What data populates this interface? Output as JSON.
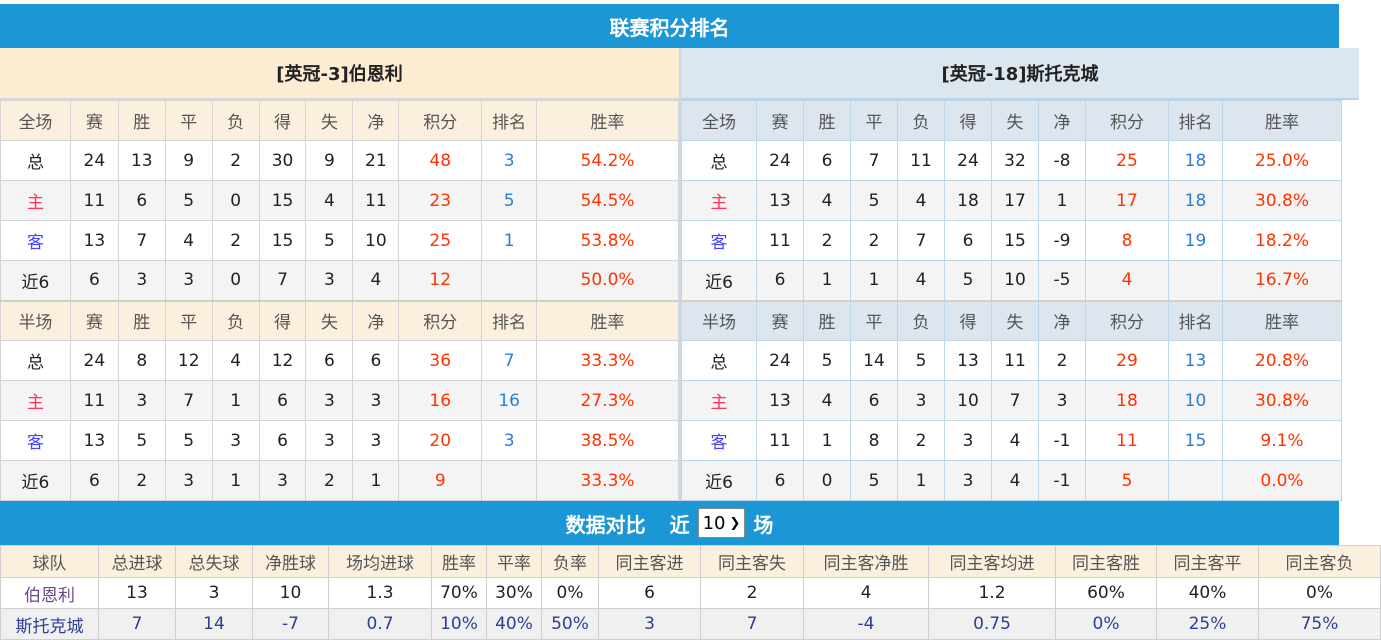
{
  "title": "联赛积分排名",
  "colors": {
    "header_bar": "#1b97d6",
    "points": "#ff3300",
    "rank": "#2a7fd4"
  },
  "home": {
    "team": "[英冠-3]伯恩利",
    "full": {
      "header": [
        "全场",
        "赛",
        "胜",
        "平",
        "负",
        "得",
        "失",
        "净",
        "积分",
        "排名",
        "胜率"
      ],
      "rows": [
        [
          "总",
          "24",
          "13",
          "9",
          "2",
          "30",
          "9",
          "21",
          "48",
          "3",
          "54.2%"
        ],
        [
          "主",
          "11",
          "6",
          "5",
          "0",
          "15",
          "4",
          "11",
          "23",
          "5",
          "54.5%"
        ],
        [
          "客",
          "13",
          "7",
          "4",
          "2",
          "15",
          "5",
          "10",
          "25",
          "1",
          "53.8%"
        ],
        [
          "近6",
          "6",
          "3",
          "3",
          "0",
          "7",
          "3",
          "4",
          "12",
          "",
          "50.0%"
        ]
      ]
    },
    "half": {
      "header": [
        "半场",
        "赛",
        "胜",
        "平",
        "负",
        "得",
        "失",
        "净",
        "积分",
        "排名",
        "胜率"
      ],
      "rows": [
        [
          "总",
          "24",
          "8",
          "12",
          "4",
          "12",
          "6",
          "6",
          "36",
          "7",
          "33.3%"
        ],
        [
          "主",
          "11",
          "3",
          "7",
          "1",
          "6",
          "3",
          "3",
          "16",
          "16",
          "27.3%"
        ],
        [
          "客",
          "13",
          "5",
          "5",
          "3",
          "6",
          "3",
          "3",
          "20",
          "3",
          "38.5%"
        ],
        [
          "近6",
          "6",
          "2",
          "3",
          "1",
          "3",
          "2",
          "1",
          "9",
          "",
          "33.3%"
        ]
      ]
    }
  },
  "away": {
    "team": "[英冠-18]斯托克城",
    "full": {
      "header": [
        "全场",
        "赛",
        "胜",
        "平",
        "负",
        "得",
        "失",
        "净",
        "积分",
        "排名",
        "胜率"
      ],
      "rows": [
        [
          "总",
          "24",
          "6",
          "7",
          "11",
          "24",
          "32",
          "-8",
          "25",
          "18",
          "25.0%"
        ],
        [
          "主",
          "13",
          "4",
          "5",
          "4",
          "18",
          "17",
          "1",
          "17",
          "18",
          "30.8%"
        ],
        [
          "客",
          "11",
          "2",
          "2",
          "7",
          "6",
          "15",
          "-9",
          "8",
          "19",
          "18.2%"
        ],
        [
          "近6",
          "6",
          "1",
          "1",
          "4",
          "5",
          "10",
          "-5",
          "4",
          "",
          "16.7%"
        ]
      ]
    },
    "half": {
      "header": [
        "半场",
        "赛",
        "胜",
        "平",
        "负",
        "得",
        "失",
        "净",
        "积分",
        "排名",
        "胜率"
      ],
      "rows": [
        [
          "总",
          "24",
          "5",
          "14",
          "5",
          "13",
          "11",
          "2",
          "29",
          "13",
          "20.8%"
        ],
        [
          "主",
          "13",
          "4",
          "6",
          "3",
          "10",
          "7",
          "3",
          "18",
          "10",
          "30.8%"
        ],
        [
          "客",
          "11",
          "1",
          "8",
          "2",
          "3",
          "4",
          "-1",
          "11",
          "15",
          "9.1%"
        ],
        [
          "近6",
          "6",
          "0",
          "5",
          "1",
          "3",
          "4",
          "-1",
          "5",
          "",
          "0.0%"
        ]
      ]
    }
  },
  "compare": {
    "title": "数据对比",
    "prefix": "近",
    "select_value": "10",
    "suffix": "场",
    "header": [
      "球队",
      "总进球",
      "总失球",
      "净胜球",
      "场均进球",
      "胜率",
      "平率",
      "负率",
      "同主客进",
      "同主客失",
      "同主客净胜",
      "同主客均进",
      "同主客胜",
      "同主客平",
      "同主客负"
    ],
    "rows": [
      [
        "伯恩利",
        "13",
        "3",
        "10",
        "1.3",
        "70%",
        "30%",
        "0%",
        "6",
        "2",
        "4",
        "1.2",
        "60%",
        "40%",
        "0%"
      ],
      [
        "斯托克城",
        "7",
        "14",
        "-7",
        "0.7",
        "10%",
        "40%",
        "50%",
        "3",
        "7",
        "-4",
        "0.75",
        "0%",
        "25%",
        "75%"
      ]
    ]
  }
}
